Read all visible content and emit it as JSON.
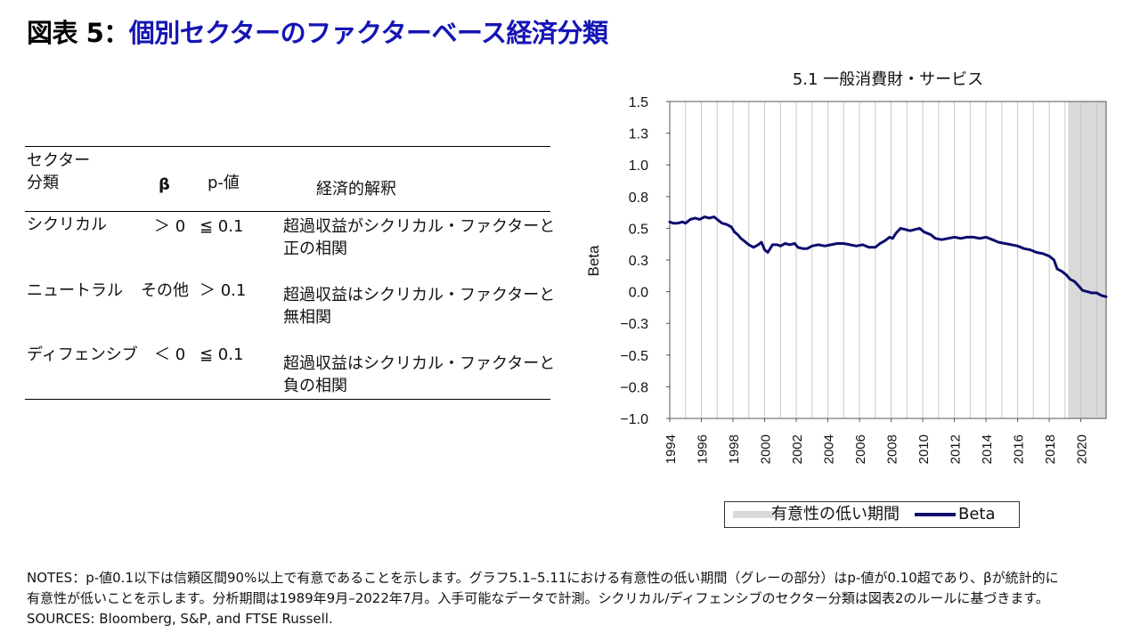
{
  "title": {
    "prefix": "図表 5：",
    "main": "個別セクターのファクターベース経済分類"
  },
  "table": {
    "headers": {
      "sector_line1": "セクター",
      "sector_line2": "分類",
      "beta": "β",
      "pvalue": "p-値",
      "interpretation": "経済的解釈"
    },
    "rows": [
      {
        "sector": "シクリカル",
        "beta": "＞ 0",
        "pvalue": "≦ 0.1",
        "interp_line1": "超過収益がシクリカル・ファクターと",
        "interp_line2": "正の相関"
      },
      {
        "sector": "ニュートラル",
        "beta": "その他",
        "pvalue": "＞ 0.1",
        "interp_line1": "超過収益はシクリカル・ファクターと",
        "interp_line2": "無相関"
      },
      {
        "sector": "ディフェンシブ",
        "beta": "＜ 0",
        "pvalue": "≦ 0.1",
        "interp_line1": "超過収益はシクリカル・ファクターと",
        "interp_line2": "負の相関"
      }
    ]
  },
  "chart_data": {
    "type": "line",
    "title": "5.1 一般消費財・サービス",
    "xlabel": "",
    "ylabel": "Beta",
    "xlim": [
      1994,
      2021.6
    ],
    "ylim": [
      -1.0,
      1.5
    ],
    "y_ticks": [
      1.5,
      1.25,
      1.0,
      0.75,
      0.5,
      0.25,
      0.0,
      -0.25,
      -0.5,
      -0.75,
      -1.0
    ],
    "y_tick_labels": [
      "1.5",
      "1.3",
      "1.0",
      "0.8",
      "0.5",
      "0.3",
      "0.0",
      "−0.3",
      "−0.5",
      "−0.8",
      "−1.0"
    ],
    "x_tick_labels": [
      "1994",
      "1996",
      "1998",
      "2000",
      "2002",
      "2004",
      "2006",
      "2008",
      "2010",
      "2012",
      "2014",
      "2016",
      "2018",
      "2020"
    ],
    "grid": "vertical, yearly",
    "shaded_region": {
      "name": "有意性の低い期間",
      "from": 2019.2,
      "to": 2021.6,
      "color": "#d9d9d9"
    },
    "series": [
      {
        "name": "Beta",
        "color": "#0d0d6e",
        "x": [
          1994.0,
          1994.2,
          1994.5,
          1994.8,
          1995.0,
          1995.3,
          1995.6,
          1995.9,
          1996.2,
          1996.5,
          1996.8,
          1997.0,
          1997.3,
          1997.6,
          1997.9,
          1998.1,
          1998.3,
          1998.5,
          1998.7,
          1999.0,
          1999.3,
          1999.6,
          1999.8,
          2000.0,
          2000.2,
          2000.5,
          2000.8,
          2001.0,
          2001.3,
          2001.6,
          2001.9,
          2002.1,
          2002.4,
          2002.7,
          2003.0,
          2003.4,
          2003.8,
          2004.2,
          2004.6,
          2005.0,
          2005.4,
          2005.8,
          2006.2,
          2006.6,
          2007.0,
          2007.3,
          2007.6,
          2007.9,
          2008.1,
          2008.3,
          2008.6,
          2008.9,
          2009.2,
          2009.5,
          2009.8,
          2010.1,
          2010.5,
          2010.8,
          2011.2,
          2011.6,
          2012.0,
          2012.4,
          2012.8,
          2013.2,
          2013.6,
          2014.0,
          2014.4,
          2014.8,
          2015.2,
          2015.6,
          2016.0,
          2016.4,
          2016.8,
          2017.2,
          2017.6,
          2018.0,
          2018.3,
          2018.5,
          2018.8,
          2019.1,
          2019.3,
          2019.6,
          2019.9,
          2020.1,
          2020.4,
          2020.7,
          2021.0,
          2021.3,
          2021.6
        ],
        "values": [
          0.55,
          0.54,
          0.54,
          0.55,
          0.54,
          0.57,
          0.58,
          0.57,
          0.59,
          0.58,
          0.59,
          0.57,
          0.54,
          0.53,
          0.51,
          0.47,
          0.45,
          0.42,
          0.4,
          0.37,
          0.35,
          0.37,
          0.39,
          0.33,
          0.31,
          0.37,
          0.37,
          0.36,
          0.38,
          0.37,
          0.38,
          0.35,
          0.34,
          0.34,
          0.36,
          0.37,
          0.36,
          0.37,
          0.38,
          0.38,
          0.37,
          0.36,
          0.37,
          0.35,
          0.35,
          0.38,
          0.4,
          0.43,
          0.42,
          0.46,
          0.5,
          0.49,
          0.48,
          0.49,
          0.5,
          0.47,
          0.45,
          0.42,
          0.41,
          0.42,
          0.43,
          0.42,
          0.43,
          0.43,
          0.42,
          0.43,
          0.41,
          0.39,
          0.38,
          0.37,
          0.36,
          0.34,
          0.33,
          0.31,
          0.3,
          0.28,
          0.25,
          0.18,
          0.16,
          0.13,
          0.1,
          0.08,
          0.04,
          0.01,
          0.0,
          -0.01,
          -0.01,
          -0.03,
          -0.04
        ]
      }
    ]
  },
  "legend": {
    "shaded_label": "有意性の低い期間",
    "line_label": "Beta",
    "shaded_color": "#d9d9d9",
    "line_color": "#0d0d6e"
  },
  "footer": {
    "line1": "NOTES：p-値0.1以下は信頼区間90%以上で有意であることを示します。グラフ5.1–5.11における有意性の低い期間（グレーの部分）はp-値が0.10超であり、βが統計的に",
    "line2": "有意性が低いことを示します。分析期間は1989年9月–2022年7月。入手可能なデータで計測。シクリカル/ディフェンシブのセクター分類は図表2のルールに基づきます。",
    "line3": "SOURCES: Bloomberg, S&P, and FTSE Russell."
  }
}
